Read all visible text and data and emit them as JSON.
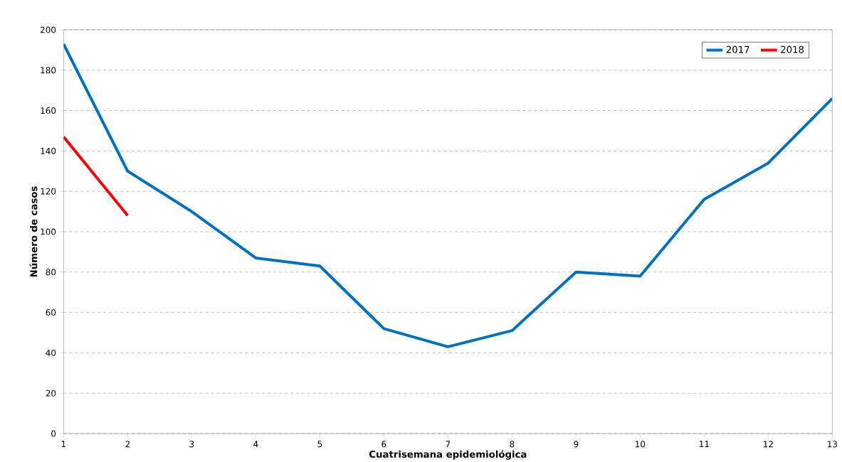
{
  "chart_data": {
    "type": "line",
    "xlabel": "Cuatrisemana epidemiológica",
    "ylabel": "Número de casos",
    "x": [
      1,
      2,
      3,
      4,
      5,
      6,
      7,
      8,
      9,
      10,
      11,
      12,
      13
    ],
    "series": [
      {
        "name": "2017",
        "color": "#0070c0",
        "values": [
          193,
          130,
          110,
          87,
          83,
          52,
          43,
          51,
          80,
          78,
          116,
          134,
          166
        ]
      },
      {
        "name": "2018",
        "color": "#ff0000",
        "values": [
          147,
          108,
          null,
          null,
          null,
          null,
          null,
          null,
          null,
          null,
          null,
          null,
          null
        ]
      }
    ],
    "xlim": [
      1,
      13
    ],
    "xticks": [
      1,
      2,
      3,
      4,
      5,
      6,
      7,
      8,
      9,
      10,
      11,
      12,
      13
    ],
    "ylim": [
      0,
      200
    ],
    "yticks": [
      0,
      20,
      40,
      60,
      80,
      100,
      120,
      140,
      160,
      180,
      200
    ],
    "grid": "y",
    "legend": "top right",
    "marker": "none",
    "line_style": "solid"
  }
}
